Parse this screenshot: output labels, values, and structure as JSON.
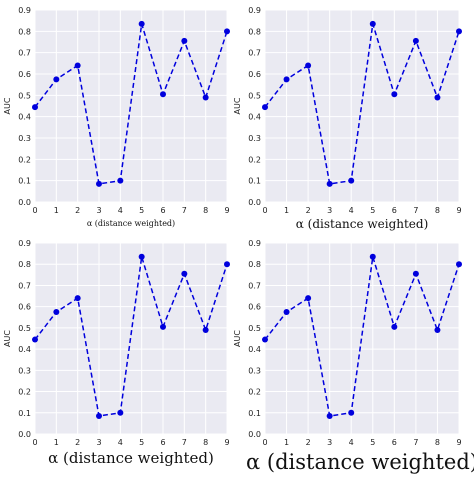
{
  "colors": {
    "plot_background": "#eaeaf2",
    "grid": "#ffffff",
    "series": "#0000dd"
  },
  "chart_data": [
    {
      "type": "line",
      "line_style": "dashed",
      "marker": "circle",
      "x": [
        0,
        1,
        2,
        3,
        4,
        5,
        6,
        7,
        8,
        9
      ],
      "series": [
        {
          "values": [
            0.445,
            0.575,
            0.64,
            0.085,
            0.1,
            0.835,
            0.505,
            0.755,
            0.49,
            0.8
          ]
        }
      ],
      "xlabel": "α (distance weighted)",
      "ylabel": "AUC",
      "xlim": [
        0,
        9
      ],
      "ylim": [
        0.0,
        0.9
      ],
      "xticks": [
        "0",
        "1",
        "2",
        "3",
        "4",
        "5",
        "6",
        "7",
        "8",
        "9"
      ],
      "yticks": [
        "0.0",
        "0.1",
        "0.2",
        "0.3",
        "0.4",
        "0.5",
        "0.6",
        "0.7",
        "0.8",
        "0.9"
      ],
      "grid": true
    },
    {
      "type": "line",
      "line_style": "dashed",
      "marker": "circle",
      "x": [
        0,
        1,
        2,
        3,
        4,
        5,
        6,
        7,
        8,
        9
      ],
      "series": [
        {
          "values": [
            0.445,
            0.575,
            0.64,
            0.085,
            0.1,
            0.835,
            0.505,
            0.755,
            0.49,
            0.8
          ]
        }
      ],
      "xlabel": "α (distance weighted)",
      "ylabel": "AUC",
      "xlim": [
        0,
        9
      ],
      "ylim": [
        0.0,
        0.9
      ],
      "xticks": [
        "0",
        "1",
        "2",
        "3",
        "4",
        "5",
        "6",
        "7",
        "8",
        "9"
      ],
      "yticks": [
        "0.0",
        "0.1",
        "0.2",
        "0.3",
        "0.4",
        "0.5",
        "0.6",
        "0.7",
        "0.8",
        "0.9"
      ],
      "grid": true
    },
    {
      "type": "line",
      "line_style": "dashed",
      "marker": "circle",
      "x": [
        0,
        1,
        2,
        3,
        4,
        5,
        6,
        7,
        8,
        9
      ],
      "series": [
        {
          "values": [
            0.445,
            0.575,
            0.64,
            0.085,
            0.1,
            0.835,
            0.505,
            0.755,
            0.49,
            0.8
          ]
        }
      ],
      "xlabel": "α (distance weighted)",
      "ylabel": "AUC",
      "xlim": [
        0,
        9
      ],
      "ylim": [
        0.0,
        0.9
      ],
      "xticks": [
        "0",
        "1",
        "2",
        "3",
        "4",
        "5",
        "6",
        "7",
        "8",
        "9"
      ],
      "yticks": [
        "0.0",
        "0.1",
        "0.2",
        "0.3",
        "0.4",
        "0.5",
        "0.6",
        "0.7",
        "0.8",
        "0.9"
      ],
      "grid": true
    },
    {
      "type": "line",
      "line_style": "dashed",
      "marker": "circle",
      "x": [
        0,
        1,
        2,
        3,
        4,
        5,
        6,
        7,
        8,
        9
      ],
      "series": [
        {
          "values": [
            0.445,
            0.575,
            0.64,
            0.085,
            0.1,
            0.835,
            0.505,
            0.755,
            0.49,
            0.8
          ]
        }
      ],
      "xlabel": "α (distance weighted)",
      "ylabel": "AUC",
      "xlim": [
        0,
        9
      ],
      "ylim": [
        0.0,
        0.9
      ],
      "xticks": [
        "0",
        "1",
        "2",
        "3",
        "4",
        "5",
        "6",
        "7",
        "8",
        "9"
      ],
      "yticks": [
        "0.0",
        "0.1",
        "0.2",
        "0.3",
        "0.4",
        "0.5",
        "0.6",
        "0.7",
        "0.8",
        "0.9"
      ],
      "grid": true
    }
  ]
}
